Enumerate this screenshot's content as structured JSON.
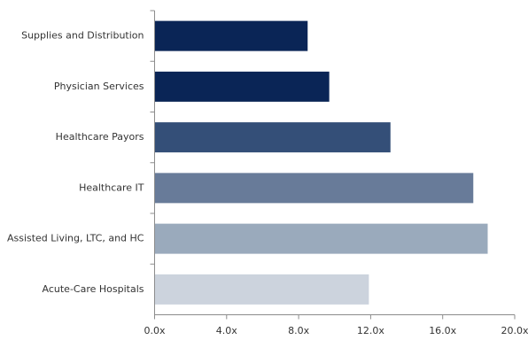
{
  "chart_data": {
    "type": "bar",
    "orientation": "horizontal",
    "title": "",
    "xlabel": "",
    "ylabel": "",
    "categories": [
      "Supplies and Distribution",
      "Physician Services",
      "Healthcare Payors",
      "Healthcare IT",
      "Assisted Living, LTC, and HC",
      "Acute-Care Hospitals"
    ],
    "values": [
      8.5,
      9.7,
      13.1,
      17.7,
      18.5,
      11.9
    ],
    "colors": [
      "#0a2556",
      "#0a2556",
      "#344f78",
      "#687b99",
      "#9aaabc",
      "#ccd3dd"
    ],
    "xlim": [
      0,
      20
    ],
    "ticks": [
      0,
      4,
      8,
      12,
      16,
      20
    ],
    "tick_labels": [
      "0.0x",
      "4.0x",
      "8.0x",
      "12.0x",
      "16.0x",
      "20.0x"
    ],
    "grid": false,
    "legend": "none"
  }
}
